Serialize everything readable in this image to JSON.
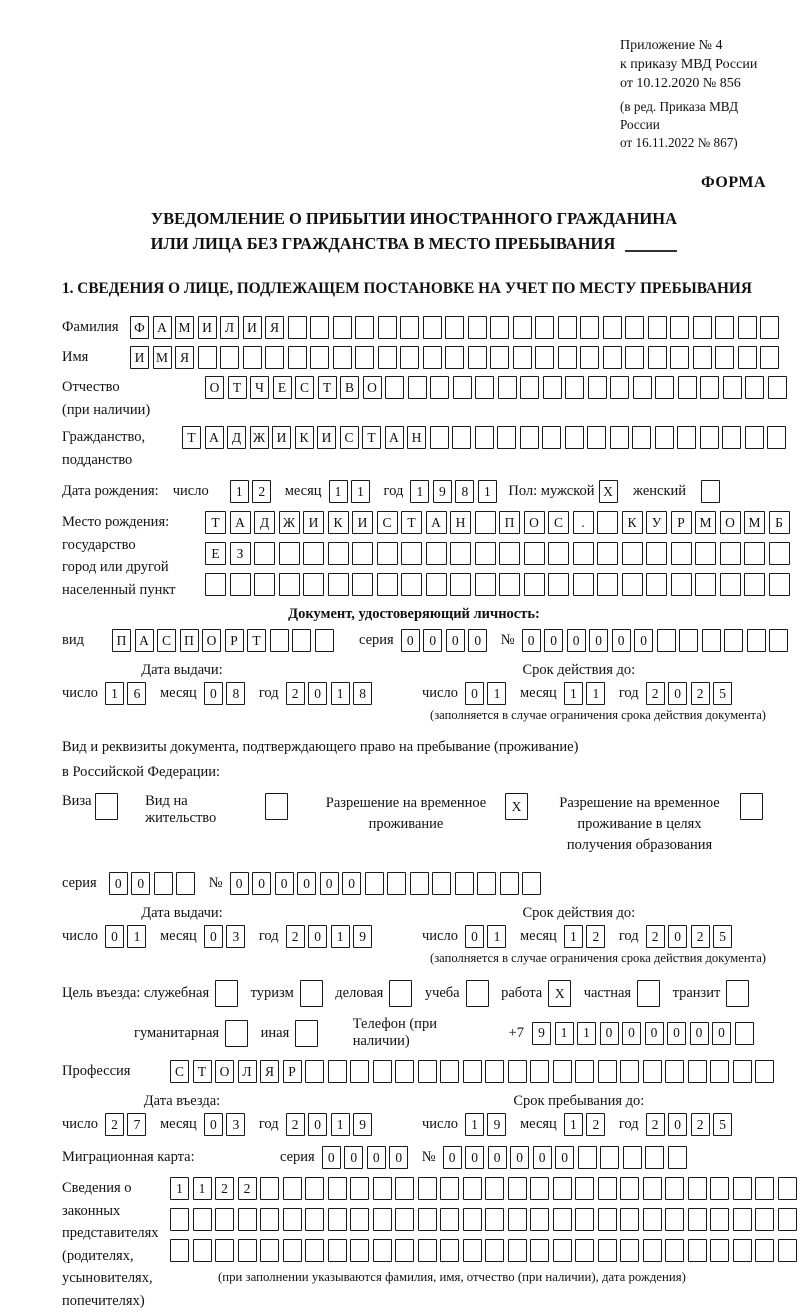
{
  "colors": {
    "background": "#ffffff",
    "text": "#111111",
    "cell_border": "#1b1b1b"
  },
  "header": {
    "appendix": [
      "Приложение № 4",
      "к приказу МВД России",
      "от 10.12.2020 № 856"
    ],
    "amendment": [
      "(в ред. Приказа МВД России",
      "от 16.11.2022 № 867)"
    ],
    "form_label": "ФОРМА"
  },
  "title": {
    "line1": "УВЕДОМЛЕНИЕ О ПРИБЫТИИ ИНОСТРАННОГО ГРАЖДАНИНА",
    "line2": "ИЛИ ЛИЦА БЕЗ ГРАЖДАНСТВА В МЕСТО ПРЕБЫВАНИЯ",
    "section1": "1. СВЕДЕНИЯ О ЛИЦЕ, ПОДЛЕЖАЩЕМ ПОСТАНОВКЕ НА УЧЕТ ПО МЕСТУ ПРЕБЫВАНИЯ"
  },
  "labels": {
    "surname": "Фамилия",
    "given_name": "Имя",
    "patronymic": "Отчество",
    "patronymic_note": "(при наличии)",
    "citizenship1": "Гражданство,",
    "citizenship2": "подданство",
    "birth_date": "Дата рождения:",
    "day": "число",
    "month": "месяц",
    "year": "год",
    "sex_male": "Пол: мужской",
    "sex_female": "женский",
    "birth_place": "Место рождения:",
    "state": "государство",
    "city1": "город или другой",
    "city2": "населенный пункт",
    "id_doc_heading": "Документ, удостоверяющий личность:",
    "doc_type": "вид",
    "series": "серия",
    "number": "№",
    "issue_date": "Дата выдачи:",
    "valid_until": "Срок действия до:",
    "valid_note": "(заполняется в случае ограничения срока действия документа)",
    "residence_doc1": "Вид и реквизиты документа, подтверждающего право на пребывание (проживание)",
    "residence_doc2": "в Российской Федерации:",
    "visa": "Виза",
    "residence_permit": "Вид на жительство",
    "temp_residence": "Разрешение на временное проживание",
    "temp_residence_edu": "Разрешение на временное проживание в целях получения образования",
    "purpose": "Цель въезда: служебная",
    "tourism": "туризм",
    "business": "деловая",
    "study": "учеба",
    "work": "работа",
    "private": "частная",
    "transit": "транзит",
    "humanitarian": "гуманитарная",
    "other": "иная",
    "phone": "Телефон (при наличии)",
    "phone_prefix": "+7",
    "profession": "Профессия",
    "entry_date": "Дата въезда:",
    "stay_until": "Срок пребывания до:",
    "migration_card": "Миграционная карта:",
    "representatives": [
      "Сведения о",
      "законных",
      "представителях",
      "(родителях,",
      "усыновителях,",
      "попечителях)"
    ],
    "representatives_note": "(при заполнении указываются фамилия, имя, отчество (при наличии), дата рождения)"
  },
  "fields": {
    "surname": {
      "value": "ФАМИЛИЯ",
      "cells": 29
    },
    "given_name": {
      "value": "ИМЯ",
      "cells": 29
    },
    "patronymic": {
      "value": "ОТЧЕСТВО",
      "cells": 26
    },
    "citizenship": {
      "value": "ТАДЖИКИСТАН",
      "cells": 27
    },
    "birth_day": {
      "value": "12",
      "cells": 2
    },
    "birth_month": {
      "value": "11",
      "cells": 2
    },
    "birth_year": {
      "value": "1981",
      "cells": 4
    },
    "sex_male_box": {
      "value": "X",
      "cells": 1
    },
    "sex_female_box": {
      "value": "",
      "cells": 1
    },
    "birth_place_row1": {
      "value": "ТАДЖИКИСТАН ПОС. КУРМОМБ",
      "cells": 24
    },
    "birth_place_row2": {
      "value": "ЕЗ",
      "cells": 24
    },
    "birth_place_row3": {
      "value": "",
      "cells": 24
    },
    "id_doc_type": {
      "value": "ПАСПОРТ",
      "cells": 10
    },
    "id_doc_series": {
      "value": "0000",
      "cells": 4
    },
    "id_doc_number": {
      "value": "000000",
      "cells": 12
    },
    "id_issue_day": {
      "value": "16",
      "cells": 2
    },
    "id_issue_month": {
      "value": "08",
      "cells": 2
    },
    "id_issue_year": {
      "value": "2018",
      "cells": 4
    },
    "id_valid_day": {
      "value": "01",
      "cells": 2
    },
    "id_valid_month": {
      "value": "11",
      "cells": 2
    },
    "id_valid_year": {
      "value": "2025",
      "cells": 4
    },
    "visa_box": {
      "value": "",
      "cells": 1
    },
    "residence_permit_box": {
      "value": "",
      "cells": 1
    },
    "temp_residence_box": {
      "value": "X",
      "cells": 1
    },
    "temp_residence_edu_box": {
      "value": "",
      "cells": 1
    },
    "permit_series": {
      "value": "00",
      "cells": 4
    },
    "permit_number": {
      "value": "000000",
      "cells": 14
    },
    "permit_issue_day": {
      "value": "01",
      "cells": 2
    },
    "permit_issue_month": {
      "value": "03",
      "cells": 2
    },
    "permit_issue_year": {
      "value": "2019",
      "cells": 4
    },
    "permit_valid_day": {
      "value": "01",
      "cells": 2
    },
    "permit_valid_month": {
      "value": "12",
      "cells": 2
    },
    "permit_valid_year": {
      "value": "2025",
      "cells": 4
    },
    "purpose_official_box": {
      "value": "",
      "cells": 1
    },
    "purpose_tourism_box": {
      "value": "",
      "cells": 1
    },
    "purpose_business_box": {
      "value": "",
      "cells": 1
    },
    "purpose_study_box": {
      "value": "",
      "cells": 1
    },
    "purpose_work_box": {
      "value": "X",
      "cells": 1
    },
    "purpose_private_box": {
      "value": "",
      "cells": 1
    },
    "purpose_transit_box": {
      "value": "",
      "cells": 1
    },
    "purpose_humanitarian_box": {
      "value": "",
      "cells": 1
    },
    "purpose_other_box": {
      "value": "",
      "cells": 1
    },
    "phone": {
      "value": "911000000",
      "cells": 10
    },
    "profession": {
      "value": "СТОЛЯР",
      "cells": 27
    },
    "entry_day": {
      "value": "27",
      "cells": 2
    },
    "entry_month": {
      "value": "03",
      "cells": 2
    },
    "entry_year": {
      "value": "2019",
      "cells": 4
    },
    "stay_day": {
      "value": "19",
      "cells": 2
    },
    "stay_month": {
      "value": "12",
      "cells": 2
    },
    "stay_year": {
      "value": "2025",
      "cells": 4
    },
    "migration_card_series": {
      "value": "0000",
      "cells": 4
    },
    "migration_card_number": {
      "value": "000000",
      "cells": 11
    },
    "representatives_row1": {
      "value": "1122",
      "cells": 28
    },
    "representatives_row2": {
      "value": "",
      "cells": 28
    },
    "representatives_row3": {
      "value": "",
      "cells": 28
    }
  }
}
